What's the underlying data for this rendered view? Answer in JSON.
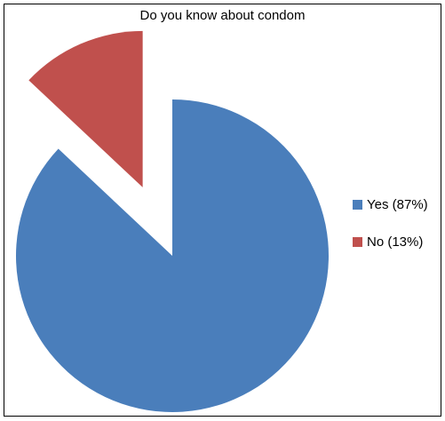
{
  "chart_data": {
    "type": "pie",
    "title": "Do you know about condom",
    "slices": [
      {
        "label": "Yes",
        "legend_label": "Yes (87%)",
        "value": 87,
        "color": "#4a7ebb"
      },
      {
        "label": "No",
        "legend_label": "No (13%)",
        "value": 13,
        "color": "#c0504d"
      }
    ],
    "exploded": "No",
    "legend_position": "right"
  }
}
